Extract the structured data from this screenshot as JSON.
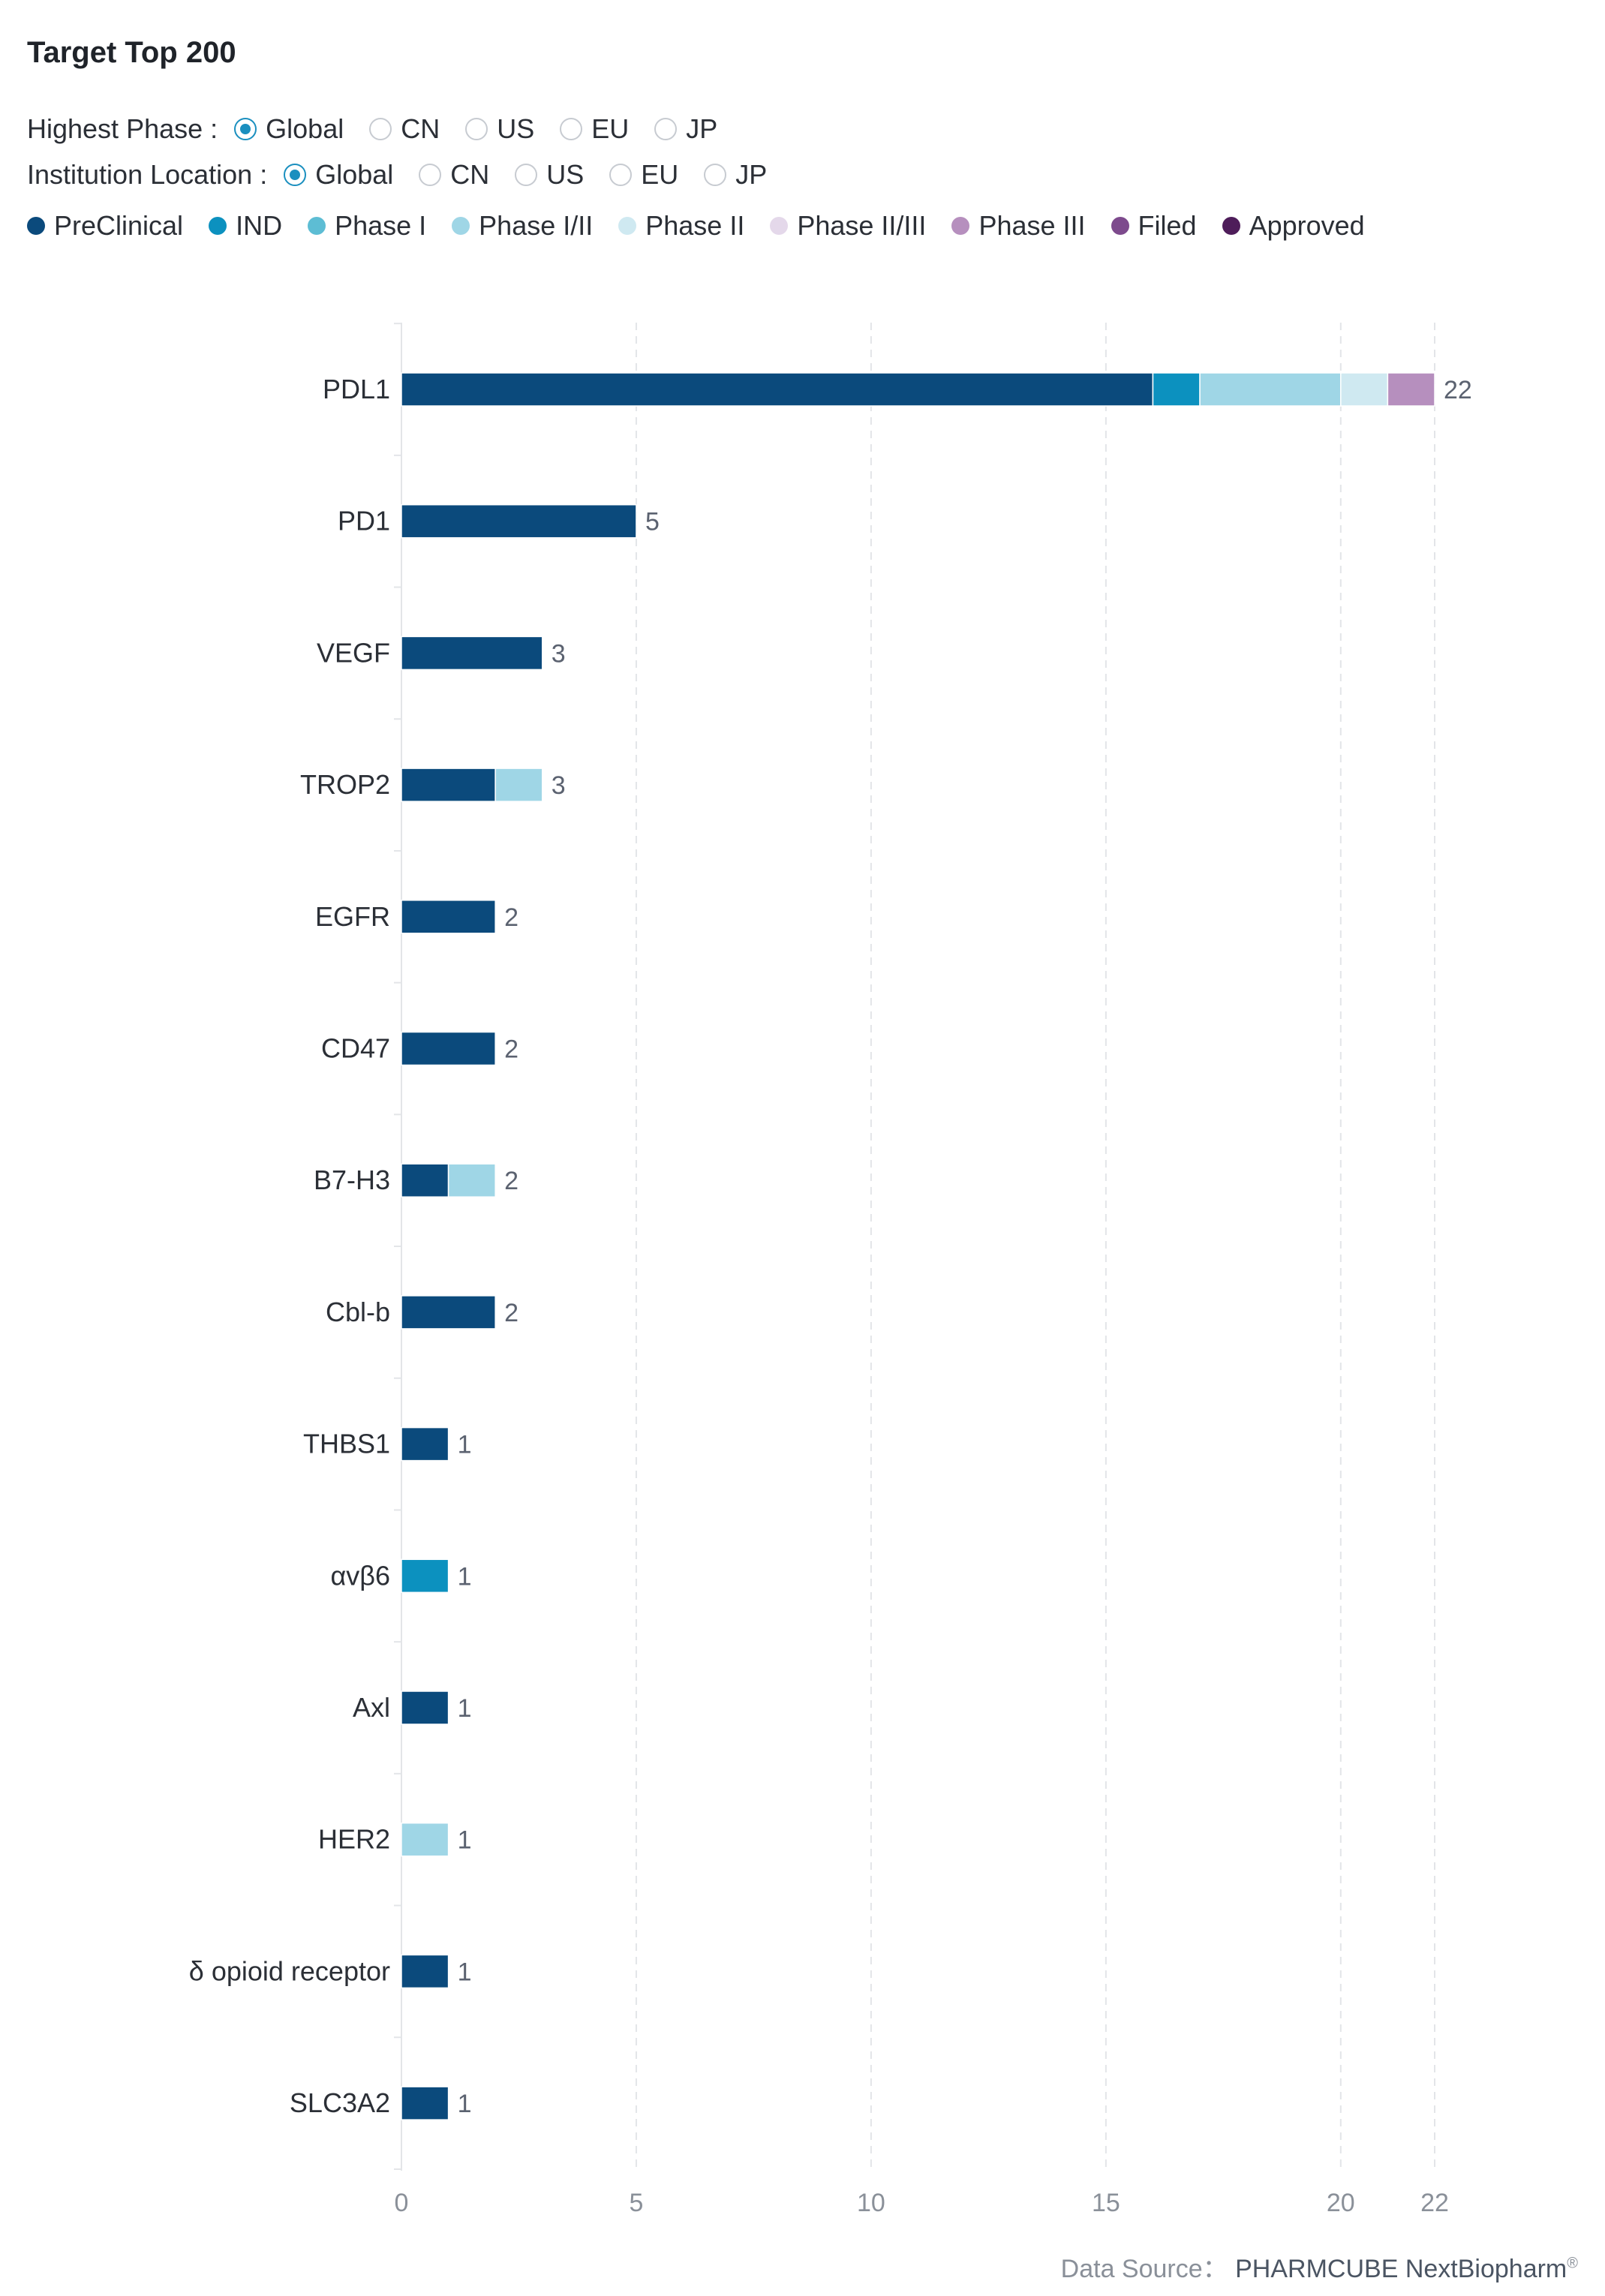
{
  "title": "Target Top 200",
  "highest_phase": {
    "label": "Highest Phase :",
    "options": [
      "Global",
      "CN",
      "US",
      "EU",
      "JP"
    ],
    "selected": "Global"
  },
  "institution_location": {
    "label": "Institution Location :",
    "options": [
      "Global",
      "CN",
      "US",
      "EU",
      "JP"
    ],
    "selected": "Global"
  },
  "data_source": {
    "label": "Data Source：",
    "brand": "PHARMCUBE NextBiopharm",
    "mark": "®"
  },
  "chart_data": {
    "type": "bar",
    "orientation": "horizontal",
    "stacked": true,
    "categories": [
      "PDL1",
      "PD1",
      "VEGF",
      "TROP2",
      "EGFR",
      "CD47",
      "B7-H3",
      "Cbl-b",
      "THBS1",
      "αvβ6",
      "Axl",
      "HER2",
      "δ opioid receptor",
      "SLC3A2"
    ],
    "series": [
      {
        "name": "PreClinical",
        "color": "#0b4a7c",
        "values": [
          16,
          5,
          3,
          2,
          2,
          2,
          1,
          2,
          1,
          0,
          1,
          0,
          1,
          1
        ]
      },
      {
        "name": "IND",
        "color": "#0c91bf",
        "values": [
          1,
          0,
          0,
          0,
          0,
          0,
          0,
          0,
          0,
          1,
          0,
          0,
          0,
          0
        ]
      },
      {
        "name": "Phase I",
        "color": "#5dbdd4",
        "values": [
          0,
          0,
          0,
          0,
          0,
          0,
          0,
          0,
          0,
          0,
          0,
          0,
          0,
          0
        ]
      },
      {
        "name": "Phase I/II",
        "color": "#9fd6e6",
        "values": [
          3,
          0,
          0,
          1,
          0,
          0,
          1,
          0,
          0,
          0,
          0,
          1,
          0,
          0
        ]
      },
      {
        "name": "Phase II",
        "color": "#cfe9f1",
        "values": [
          1,
          0,
          0,
          0,
          0,
          0,
          0,
          0,
          0,
          0,
          0,
          0,
          0,
          0
        ]
      },
      {
        "name": "Phase II/III",
        "color": "#e4d8ea",
        "values": [
          0,
          0,
          0,
          0,
          0,
          0,
          0,
          0,
          0,
          0,
          0,
          0,
          0,
          0
        ]
      },
      {
        "name": "Phase III",
        "color": "#b68fbe",
        "values": [
          1,
          0,
          0,
          0,
          0,
          0,
          0,
          0,
          0,
          0,
          0,
          0,
          0,
          0
        ]
      },
      {
        "name": "Filed",
        "color": "#7d4a8d",
        "values": [
          0,
          0,
          0,
          0,
          0,
          0,
          0,
          0,
          0,
          0,
          0,
          0,
          0,
          0
        ]
      },
      {
        "name": "Approved",
        "color": "#4e1d5a",
        "values": [
          0,
          0,
          0,
          0,
          0,
          0,
          0,
          0,
          0,
          0,
          0,
          0,
          0,
          0
        ]
      }
    ],
    "totals": [
      22,
      5,
      3,
      3,
      2,
      2,
      2,
      2,
      1,
      1,
      1,
      1,
      1,
      1
    ],
    "x_ticks": [
      0,
      5,
      10,
      15,
      20,
      22
    ],
    "xlim": [
      0,
      22
    ],
    "grid": "vertical dashed",
    "legend_position": "top"
  }
}
